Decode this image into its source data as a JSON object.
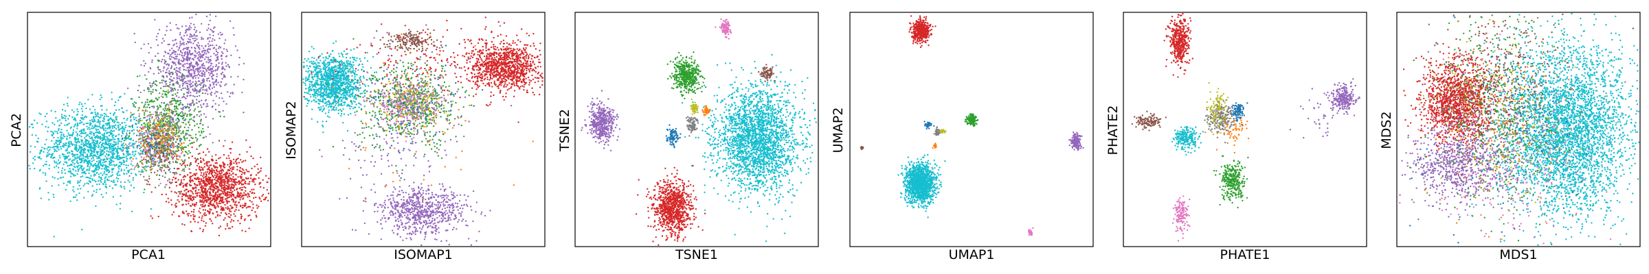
{
  "palette": {
    "blue": "#1f77b4",
    "orange": "#ff7f0e",
    "green": "#2ca02c",
    "red": "#d62728",
    "purple": "#9467bd",
    "brown": "#8c564b",
    "pink": "#e377c2",
    "gray": "#7f7f7f",
    "olive": "#bcbd22",
    "cyan": "#17becf"
  },
  "chart_data": [
    {
      "type": "scatter",
      "xlabel": "PCA1",
      "ylabel": "PCA2",
      "ticks": "none",
      "grid": false,
      "clusters": [
        {
          "color": "cyan",
          "cx": 0.28,
          "cy": 0.42,
          "sx": 0.11,
          "sy": 0.09,
          "n": 1500
        },
        {
          "color": "red",
          "cx": 0.78,
          "cy": 0.25,
          "sx": 0.09,
          "sy": 0.07,
          "n": 1200
        },
        {
          "color": "purple",
          "cx": 0.68,
          "cy": 0.76,
          "sx": 0.08,
          "sy": 0.09,
          "n": 900
        },
        {
          "color": "green",
          "cx": 0.58,
          "cy": 0.52,
          "sx": 0.07,
          "sy": 0.1,
          "n": 500
        },
        {
          "color": "gray",
          "cx": 0.55,
          "cy": 0.44,
          "sx": 0.05,
          "sy": 0.07,
          "n": 260
        },
        {
          "color": "pink",
          "cx": 0.54,
          "cy": 0.46,
          "sx": 0.05,
          "sy": 0.07,
          "n": 160
        },
        {
          "color": "olive",
          "cx": 0.55,
          "cy": 0.47,
          "sx": 0.04,
          "sy": 0.06,
          "n": 130
        },
        {
          "color": "brown",
          "cx": 0.53,
          "cy": 0.42,
          "sx": 0.04,
          "sy": 0.06,
          "n": 110
        },
        {
          "color": "orange",
          "cx": 0.55,
          "cy": 0.45,
          "sx": 0.05,
          "sy": 0.06,
          "n": 90
        },
        {
          "color": "blue",
          "cx": 0.55,
          "cy": 0.44,
          "sx": 0.05,
          "sy": 0.07,
          "n": 90
        }
      ]
    },
    {
      "type": "scatter",
      "xlabel": "ISOMAP1",
      "ylabel": "ISOMAP2",
      "ticks": "none",
      "grid": false,
      "clusters": [
        {
          "color": "cyan",
          "cx": 0.13,
          "cy": 0.7,
          "sx": 0.06,
          "sy": 0.06,
          "n": 1200
        },
        {
          "color": "red",
          "cx": 0.84,
          "cy": 0.77,
          "sx": 0.07,
          "sy": 0.05,
          "n": 1000
        },
        {
          "color": "red",
          "cx": 0.55,
          "cy": 0.78,
          "sx": 0.18,
          "sy": 0.08,
          "n": 200
        },
        {
          "color": "purple",
          "cx": 0.5,
          "cy": 0.15,
          "sx": 0.09,
          "sy": 0.05,
          "n": 700
        },
        {
          "color": "purple",
          "cx": 0.4,
          "cy": 0.45,
          "sx": 0.15,
          "sy": 0.2,
          "n": 220
        },
        {
          "color": "green",
          "cx": 0.45,
          "cy": 0.6,
          "sx": 0.11,
          "sy": 0.09,
          "n": 450
        },
        {
          "color": "gray",
          "cx": 0.46,
          "cy": 0.62,
          "sx": 0.06,
          "sy": 0.05,
          "n": 280
        },
        {
          "color": "olive",
          "cx": 0.45,
          "cy": 0.61,
          "sx": 0.06,
          "sy": 0.05,
          "n": 160
        },
        {
          "color": "pink",
          "cx": 0.44,
          "cy": 0.6,
          "sx": 0.07,
          "sy": 0.06,
          "n": 160
        },
        {
          "color": "brown",
          "cx": 0.45,
          "cy": 0.88,
          "sx": 0.05,
          "sy": 0.02,
          "n": 180
        },
        {
          "color": "blue",
          "cx": 0.45,
          "cy": 0.6,
          "sx": 0.1,
          "sy": 0.1,
          "n": 120
        },
        {
          "color": "orange",
          "cx": 0.5,
          "cy": 0.55,
          "sx": 0.15,
          "sy": 0.15,
          "n": 80
        }
      ]
    },
    {
      "type": "scatter",
      "xlabel": "TSNE1",
      "ylabel": "TSNE2",
      "ticks": "none",
      "grid": false,
      "clusters": [
        {
          "color": "cyan",
          "cx": 0.75,
          "cy": 0.46,
          "sx": 0.085,
          "sy": 0.11,
          "n": 2300
        },
        {
          "color": "red",
          "cx": 0.4,
          "cy": 0.16,
          "sx": 0.04,
          "sy": 0.06,
          "n": 900
        },
        {
          "color": "purple",
          "cx": 0.11,
          "cy": 0.53,
          "sx": 0.028,
          "sy": 0.04,
          "n": 450
        },
        {
          "color": "green",
          "cx": 0.46,
          "cy": 0.73,
          "sx": 0.028,
          "sy": 0.035,
          "n": 450
        },
        {
          "color": "pink",
          "cx": 0.62,
          "cy": 0.93,
          "sx": 0.012,
          "sy": 0.016,
          "n": 110
        },
        {
          "color": "brown",
          "cx": 0.79,
          "cy": 0.74,
          "sx": 0.012,
          "sy": 0.012,
          "n": 80
        },
        {
          "color": "blue",
          "cx": 0.4,
          "cy": 0.47,
          "sx": 0.012,
          "sy": 0.016,
          "n": 90
        },
        {
          "color": "gray",
          "cx": 0.48,
          "cy": 0.52,
          "sx": 0.012,
          "sy": 0.016,
          "n": 90
        },
        {
          "color": "olive",
          "cx": 0.49,
          "cy": 0.59,
          "sx": 0.008,
          "sy": 0.012,
          "n": 60
        },
        {
          "color": "orange",
          "cx": 0.54,
          "cy": 0.58,
          "sx": 0.007,
          "sy": 0.01,
          "n": 45
        }
      ]
    },
    {
      "type": "scatter",
      "xlabel": "UMAP1",
      "ylabel": "UMAP2",
      "ticks": "none",
      "grid": false,
      "clusters": [
        {
          "color": "cyan",
          "cx": 0.29,
          "cy": 0.27,
          "sx": 0.03,
          "sy": 0.04,
          "n": 1400
        },
        {
          "color": "red",
          "cx": 0.29,
          "cy": 0.92,
          "sx": 0.018,
          "sy": 0.024,
          "n": 450
        },
        {
          "color": "purple",
          "cx": 0.93,
          "cy": 0.45,
          "sx": 0.01,
          "sy": 0.015,
          "n": 180
        },
        {
          "color": "green",
          "cx": 0.5,
          "cy": 0.54,
          "sx": 0.01,
          "sy": 0.012,
          "n": 130
        },
        {
          "color": "pink",
          "cx": 0.74,
          "cy": 0.06,
          "sx": 0.004,
          "sy": 0.006,
          "n": 30
        },
        {
          "color": "brown",
          "cx": 0.05,
          "cy": 0.42,
          "sx": 0.003,
          "sy": 0.004,
          "n": 25
        },
        {
          "color": "blue",
          "cx": 0.32,
          "cy": 0.52,
          "sx": 0.006,
          "sy": 0.008,
          "n": 35
        },
        {
          "color": "gray",
          "cx": 0.36,
          "cy": 0.49,
          "sx": 0.006,
          "sy": 0.008,
          "n": 35
        },
        {
          "color": "olive",
          "cx": 0.38,
          "cy": 0.49,
          "sx": 0.006,
          "sy": 0.006,
          "n": 25
        },
        {
          "color": "orange",
          "cx": 0.35,
          "cy": 0.43,
          "sx": 0.004,
          "sy": 0.005,
          "n": 20
        }
      ]
    },
    {
      "type": "scatter",
      "xlabel": "PHATE1",
      "ylabel": "PHATE2",
      "ticks": "none",
      "grid": false,
      "clusters": [
        {
          "color": "red",
          "cx": 0.23,
          "cy": 0.88,
          "sx": 0.02,
          "sy": 0.05,
          "n": 450
        },
        {
          "color": "purple",
          "cx": 0.9,
          "cy": 0.63,
          "sx": 0.025,
          "sy": 0.03,
          "n": 260
        },
        {
          "color": "purple",
          "cx": 0.8,
          "cy": 0.55,
          "sx": 0.04,
          "sy": 0.08,
          "n": 30
        },
        {
          "color": "green",
          "cx": 0.45,
          "cy": 0.28,
          "sx": 0.025,
          "sy": 0.04,
          "n": 300
        },
        {
          "color": "cyan",
          "cx": 0.26,
          "cy": 0.46,
          "sx": 0.025,
          "sy": 0.025,
          "n": 220
        },
        {
          "color": "gray",
          "cx": 0.4,
          "cy": 0.55,
          "sx": 0.025,
          "sy": 0.03,
          "n": 220
        },
        {
          "color": "olive",
          "cx": 0.38,
          "cy": 0.58,
          "sx": 0.02,
          "sy": 0.04,
          "n": 90
        },
        {
          "color": "orange",
          "cx": 0.46,
          "cy": 0.5,
          "sx": 0.03,
          "sy": 0.04,
          "n": 60
        },
        {
          "color": "blue",
          "cx": 0.47,
          "cy": 0.58,
          "sx": 0.012,
          "sy": 0.018,
          "n": 90
        },
        {
          "color": "brown",
          "cx": 0.1,
          "cy": 0.53,
          "sx": 0.025,
          "sy": 0.015,
          "n": 120
        },
        {
          "color": "pink",
          "cx": 0.24,
          "cy": 0.13,
          "sx": 0.015,
          "sy": 0.04,
          "n": 130
        }
      ]
    },
    {
      "type": "scatter",
      "xlabel": "MDS1",
      "ylabel": "MDS2",
      "ticks": "none",
      "grid": false,
      "clusters": [
        {
          "color": "cyan",
          "cx": 0.7,
          "cy": 0.5,
          "sx": 0.13,
          "sy": 0.18,
          "n": 3600
        },
        {
          "color": "red",
          "cx": 0.25,
          "cy": 0.62,
          "sx": 0.075,
          "sy": 0.09,
          "n": 1400
        },
        {
          "color": "purple",
          "cx": 0.25,
          "cy": 0.35,
          "sx": 0.09,
          "sy": 0.08,
          "n": 700
        },
        {
          "color": "green",
          "cx": 0.4,
          "cy": 0.55,
          "sx": 0.12,
          "sy": 0.2,
          "n": 400
        },
        {
          "color": "brown",
          "cx": 0.45,
          "cy": 0.7,
          "sx": 0.12,
          "sy": 0.15,
          "n": 280
        },
        {
          "color": "pink",
          "cx": 0.45,
          "cy": 0.4,
          "sx": 0.15,
          "sy": 0.2,
          "n": 260
        },
        {
          "color": "gray",
          "cx": 0.45,
          "cy": 0.5,
          "sx": 0.15,
          "sy": 0.2,
          "n": 260
        },
        {
          "color": "olive",
          "cx": 0.42,
          "cy": 0.55,
          "sx": 0.14,
          "sy": 0.18,
          "n": 180
        },
        {
          "color": "orange",
          "cx": 0.45,
          "cy": 0.5,
          "sx": 0.15,
          "sy": 0.2,
          "n": 160
        },
        {
          "color": "blue",
          "cx": 0.45,
          "cy": 0.5,
          "sx": 0.15,
          "sy": 0.2,
          "n": 160
        }
      ]
    }
  ]
}
